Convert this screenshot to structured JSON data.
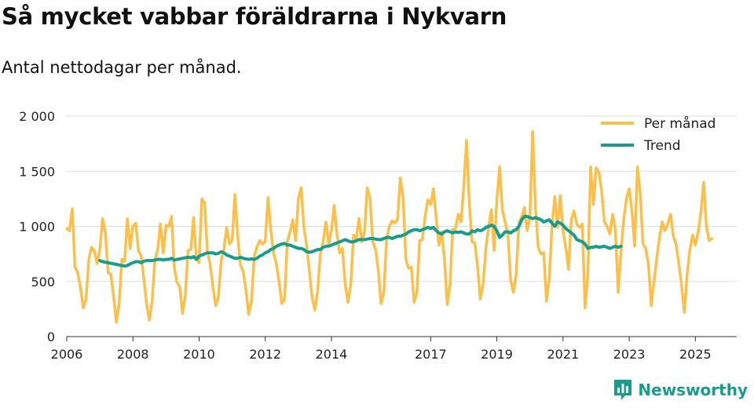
{
  "header": {
    "title": "Så mycket vabbar föräldrarna i Nykvarn",
    "subtitle": "Antal nettodagar per månad."
  },
  "brand": {
    "name": "Newsworthy",
    "color": "#179c8e"
  },
  "chart_data": {
    "type": "line",
    "title": "Så mycket vabbar föräldrarna i Nykvarn",
    "subtitle": "Antal nettodagar per månad.",
    "xlabel": "",
    "ylabel": "",
    "ylim": [
      0,
      2000
    ],
    "yticks": [
      0,
      500,
      1000,
      1500,
      2000
    ],
    "ytick_labels": [
      "0",
      "500",
      "1 000",
      "1 500",
      "2 000"
    ],
    "xlim": [
      2006,
      2026.25
    ],
    "xticks": [
      2006,
      2008,
      2010,
      2012,
      2014,
      2017,
      2019,
      2021,
      2023,
      2025
    ],
    "xtick_labels": [
      "2006",
      "2008",
      "2010",
      "2012",
      "2014",
      "2017",
      "2019",
      "2021",
      "2023",
      "2025"
    ],
    "grid": "horizontal",
    "legend_position": "top-right",
    "series": [
      {
        "name": "Per månad",
        "color": "#fcbf49",
        "start": [
          2006,
          1
        ],
        "values": [
          980,
          960,
          1160,
          630,
          580,
          440,
          260,
          340,
          700,
          810,
          780,
          660,
          790,
          1070,
          950,
          580,
          560,
          360,
          130,
          300,
          700,
          680,
          1070,
          800,
          1000,
          1030,
          780,
          730,
          520,
          290,
          150,
          330,
          700,
          790,
          1020,
          760,
          1010,
          1000,
          1090,
          630,
          490,
          450,
          210,
          370,
          780,
          790,
          1080,
          710,
          670,
          1250,
          1210,
          780,
          660,
          460,
          280,
          360,
          690,
          790,
          990,
          840,
          870,
          1290,
          920,
          650,
          590,
          420,
          200,
          320,
          730,
          810,
          870,
          840,
          860,
          1260,
          960,
          760,
          660,
          500,
          300,
          340,
          860,
          950,
          1060,
          870,
          1250,
          1350,
          990,
          830,
          600,
          360,
          240,
          410,
          750,
          860,
          1040,
          840,
          960,
          1190,
          930,
          760,
          800,
          480,
          310,
          470,
          920,
          890,
          1070,
          860,
          950,
          1350,
          1260,
          860,
          790,
          600,
          300,
          400,
          880,
          1000,
          1050,
          1030,
          1060,
          1440,
          1250,
          700,
          620,
          630,
          310,
          400,
          870,
          880,
          1090,
          1240,
          1200,
          1340,
          1080,
          830,
          950,
          700,
          290,
          460,
          970,
          980,
          1110,
          1040,
          1360,
          1780,
          1220,
          860,
          850,
          640,
          340,
          470,
          800,
          990,
          1150,
          780,
          1240,
          1540,
          1150,
          1040,
          930,
          510,
          400,
          560,
          1030,
          1090,
          1170,
          960,
          1090,
          1860,
          1180,
          810,
          750,
          760,
          320,
          520,
          1000,
          1270,
          990,
          1280,
          960,
          810,
          610,
          1060,
          1140,
          1020,
          990,
          1020,
          260,
          560,
          1540,
          1200,
          1530,
          1490,
          1320,
          1040,
          1000,
          930,
          1110,
          970,
          400,
          760,
          1060,
          1250,
          1340,
          1140,
          820,
          1540,
          1300,
          840,
          800,
          650,
          280,
          500,
          710,
          900,
          1040,
          960,
          1020,
          1110,
          910,
          840,
          660,
          470,
          220,
          560,
          780,
          920,
          830,
          950,
          1120,
          1400,
          1000,
          870,
          890
        ]
      },
      {
        "name": "Trend",
        "color": "#179c8e",
        "start": [
          2007,
          1
        ],
        "values": [
          690,
          680,
          675,
          670,
          665,
          660,
          655,
          650,
          645,
          640,
          645,
          660,
          670,
          680,
          680,
          670,
          685,
          690,
          690,
          690,
          695,
          700,
          700,
          695,
          700,
          700,
          710,
          695,
          700,
          705,
          710,
          715,
          720,
          715,
          725,
          700,
          730,
          740,
          750,
          760,
          760,
          760,
          750,
          755,
          770,
          760,
          740,
          730,
          720,
          710,
          710,
          720,
          710,
          705,
          700,
          705,
          700,
          710,
          730,
          740,
          760,
          770,
          790,
          800,
          820,
          830,
          840,
          845,
          830,
          830,
          820,
          810,
          800,
          800,
          790,
          770,
          765,
          770,
          780,
          790,
          790,
          810,
          820,
          820,
          830,
          840,
          850,
          860,
          870,
          880,
          870,
          860,
          860,
          870,
          880,
          880,
          880,
          885,
          890,
          890,
          885,
          880,
          880,
          890,
          900,
          900,
          890,
          900,
          910,
          910,
          920,
          930,
          950,
          960,
          970,
          970,
          960,
          970,
          980,
          990,
          980,
          990,
          960,
          940,
          930,
          950,
          960,
          950,
          940,
          950,
          945,
          950,
          940,
          930,
          930,
          960,
          950,
          970,
          960,
          970,
          990,
          1000,
          1010,
          1000,
          960,
          900,
          920,
          950,
          950,
          940,
          960,
          970,
          1000,
          1060,
          1090,
          1090,
          1080,
          1070,
          1080,
          1070,
          1060,
          1040,
          1050,
          1060,
          1030,
          1000,
          1040,
          1030,
          1010,
          980,
          960,
          940,
          920,
          880,
          870,
          860,
          840,
          800,
          810,
          810,
          820,
          810,
          815,
          820,
          810,
          800,
          810,
          820,
          810,
          820
        ]
      }
    ]
  }
}
